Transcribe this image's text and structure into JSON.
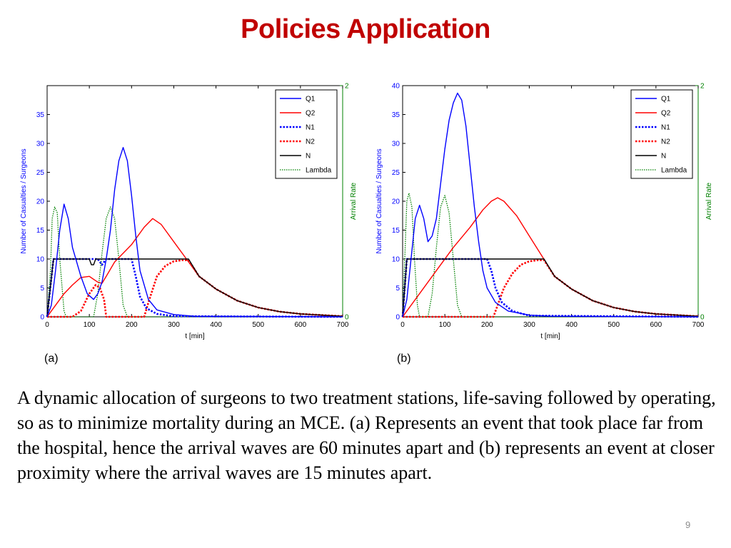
{
  "title": "Policies Application",
  "caption": "A dynamic allocation of surgeons to two treatment stations, life-saving followed by operating, so as to minimize mortality during an MCE. (a) Represents an event that took place far from the hospital, hence the arrival waves are 60 minutes apart and (b) represents an event at closer proximity where the arrival waves are 15 minutes apart.",
  "page_number": "9",
  "chart_data": [
    {
      "id": "a",
      "type": "line",
      "panel_label": "(a)",
      "xlabel": "t [min]",
      "ylabel": "Number of Casualties / Surgeons",
      "y2label": "Arrival Rate",
      "xlim": [
        0,
        700
      ],
      "ylim": [
        0,
        40
      ],
      "y2lim": [
        0,
        2
      ],
      "xticks": [
        "0",
        "100",
        "200",
        "300",
        "400",
        "500",
        "600",
        "700"
      ],
      "yticks": [
        "0",
        "5",
        "10",
        "15",
        "20",
        "25",
        "30",
        "35"
      ],
      "y2ticks": [
        "0",
        "2"
      ],
      "legend_position": "top-right",
      "colors": {
        "Q1": "#0000ff",
        "Q2": "#ff0000",
        "N1": "#0000ff",
        "N2": "#ff0000",
        "N": "#000000",
        "Lambda": "#008000"
      },
      "series": [
        {
          "name": "Q1",
          "style": "solid",
          "axis": "left",
          "points": [
            [
              0,
              0
            ],
            [
              10,
              2
            ],
            [
              20,
              8
            ],
            [
              30,
              15
            ],
            [
              40,
              19.5
            ],
            [
              50,
              17
            ],
            [
              60,
              12
            ],
            [
              80,
              7
            ],
            [
              95,
              4
            ],
            [
              110,
              3
            ],
            [
              120,
              4
            ],
            [
              130,
              6
            ],
            [
              140,
              10
            ],
            [
              150,
              15
            ],
            [
              160,
              22
            ],
            [
              170,
              27
            ],
            [
              180,
              29.3
            ],
            [
              190,
              27
            ],
            [
              200,
              21
            ],
            [
              210,
              14
            ],
            [
              220,
              8
            ],
            [
              240,
              3
            ],
            [
              260,
              1.2
            ],
            [
              300,
              0.4
            ],
            [
              350,
              0.1
            ],
            [
              700,
              0
            ]
          ]
        },
        {
          "name": "Q2",
          "style": "solid",
          "axis": "left",
          "points": [
            [
              0,
              0
            ],
            [
              20,
              2
            ],
            [
              40,
              4
            ],
            [
              60,
              5.5
            ],
            [
              80,
              6.8
            ],
            [
              100,
              7
            ],
            [
              120,
              6
            ],
            [
              130,
              5.8
            ],
            [
              140,
              7
            ],
            [
              160,
              9.5
            ],
            [
              200,
              12.5
            ],
            [
              230,
              15.5
            ],
            [
              250,
              17
            ],
            [
              270,
              16
            ],
            [
              300,
              13
            ],
            [
              330,
              10
            ],
            [
              360,
              7
            ],
            [
              400,
              4.8
            ],
            [
              450,
              2.8
            ],
            [
              500,
              1.6
            ],
            [
              550,
              0.9
            ],
            [
              600,
              0.5
            ],
            [
              650,
              0.3
            ],
            [
              700,
              0.1
            ]
          ]
        },
        {
          "name": "N1",
          "style": "dotted",
          "axis": "left",
          "points": [
            [
              0,
              0
            ],
            [
              15,
              10
            ],
            [
              120,
              10
            ],
            [
              130,
              9
            ],
            [
              140,
              10
            ],
            [
              200,
              10
            ],
            [
              210,
              7
            ],
            [
              220,
              3.5
            ],
            [
              235,
              1.5
            ],
            [
              260,
              0.5
            ],
            [
              300,
              0.1
            ],
            [
              700,
              0
            ]
          ]
        },
        {
          "name": "N2",
          "style": "dotted",
          "axis": "left",
          "points": [
            [
              0,
              0
            ],
            [
              60,
              0
            ],
            [
              80,
              1
            ],
            [
              100,
              4
            ],
            [
              115,
              5.5
            ],
            [
              125,
              5
            ],
            [
              135,
              3
            ],
            [
              140,
              0
            ],
            [
              230,
              0
            ],
            [
              240,
              2.5
            ],
            [
              260,
              7
            ],
            [
              280,
              8.8
            ],
            [
              300,
              9.6
            ],
            [
              320,
              9.8
            ],
            [
              335,
              9.8
            ],
            [
              360,
              7
            ],
            [
              400,
              4.8
            ],
            [
              450,
              2.8
            ],
            [
              500,
              1.6
            ],
            [
              550,
              0.9
            ],
            [
              600,
              0.5
            ],
            [
              650,
              0.3
            ],
            [
              700,
              0.1
            ]
          ]
        },
        {
          "name": "N",
          "style": "solid",
          "axis": "left",
          "points": [
            [
              0,
              0
            ],
            [
              15,
              10
            ],
            [
              100,
              10
            ],
            [
              105,
              9
            ],
            [
              110,
              9
            ],
            [
              115,
              10
            ],
            [
              335,
              10
            ],
            [
              360,
              7
            ],
            [
              400,
              4.8
            ],
            [
              450,
              2.8
            ],
            [
              500,
              1.6
            ],
            [
              550,
              0.9
            ],
            [
              600,
              0.5
            ],
            [
              650,
              0.3
            ],
            [
              700,
              0.1
            ]
          ]
        },
        {
          "name": "Lambda",
          "style": "dotted",
          "axis": "right",
          "points": [
            [
              0,
              0
            ],
            [
              8,
              0.4
            ],
            [
              12,
              0.85
            ],
            [
              18,
              0.95
            ],
            [
              24,
              0.9
            ],
            [
              30,
              0.5
            ],
            [
              40,
              0.05
            ],
            [
              45,
              0
            ],
            [
              110,
              0
            ],
            [
              120,
              0.2
            ],
            [
              130,
              0.55
            ],
            [
              140,
              0.85
            ],
            [
              150,
              0.95
            ],
            [
              160,
              0.85
            ],
            [
              170,
              0.5
            ],
            [
              180,
              0.1
            ],
            [
              190,
              0
            ],
            [
              700,
              0
            ]
          ]
        }
      ]
    },
    {
      "id": "b",
      "type": "line",
      "panel_label": "(b)",
      "xlabel": "t [min]",
      "ylabel": "Number of Casualties / Surgeons",
      "y2label": "Arrival Rate",
      "xlim": [
        0,
        700
      ],
      "ylim": [
        0,
        40
      ],
      "y2lim": [
        0,
        2
      ],
      "xticks": [
        "0",
        "100",
        "200",
        "300",
        "400",
        "500",
        "600",
        "700"
      ],
      "yticks": [
        "0",
        "5",
        "10",
        "15",
        "20",
        "25",
        "30",
        "35",
        "40"
      ],
      "y2ticks": [
        "0",
        "2"
      ],
      "legend_position": "top-right",
      "colors": {
        "Q1": "#0000ff",
        "Q2": "#ff0000",
        "N1": "#0000ff",
        "N2": "#ff0000",
        "N": "#000000",
        "Lambda": "#008000"
      },
      "series": [
        {
          "name": "Q1",
          "style": "solid",
          "axis": "left",
          "points": [
            [
              0,
              0
            ],
            [
              10,
              3
            ],
            [
              20,
              10
            ],
            [
              30,
              17
            ],
            [
              40,
              19.3
            ],
            [
              50,
              17
            ],
            [
              60,
              13
            ],
            [
              70,
              14
            ],
            [
              80,
              17
            ],
            [
              90,
              23
            ],
            [
              100,
              29
            ],
            [
              110,
              34
            ],
            [
              120,
              37
            ],
            [
              130,
              38.7
            ],
            [
              140,
              37.5
            ],
            [
              150,
              33
            ],
            [
              160,
              26
            ],
            [
              170,
              19
            ],
            [
              180,
              13
            ],
            [
              190,
              8
            ],
            [
              200,
              5
            ],
            [
              220,
              2.5
            ],
            [
              250,
              1
            ],
            [
              300,
              0.3
            ],
            [
              350,
              0.1
            ],
            [
              700,
              0
            ]
          ]
        },
        {
          "name": "Q2",
          "style": "solid",
          "axis": "left",
          "points": [
            [
              0,
              0
            ],
            [
              40,
              4
            ],
            [
              80,
              8
            ],
            [
              120,
              12
            ],
            [
              160,
              15.5
            ],
            [
              190,
              18.5
            ],
            [
              210,
              20
            ],
            [
              225,
              20.6
            ],
            [
              240,
              20
            ],
            [
              270,
              17.5
            ],
            [
              300,
              14
            ],
            [
              330,
              10.5
            ],
            [
              360,
              7
            ],
            [
              400,
              4.8
            ],
            [
              450,
              2.8
            ],
            [
              500,
              1.6
            ],
            [
              550,
              0.9
            ],
            [
              600,
              0.5
            ],
            [
              650,
              0.3
            ],
            [
              700,
              0.1
            ]
          ]
        },
        {
          "name": "N1",
          "style": "dotted",
          "axis": "left",
          "points": [
            [
              0,
              0
            ],
            [
              10,
              10
            ],
            [
              200,
              10
            ],
            [
              210,
              8
            ],
            [
              220,
              5
            ],
            [
              235,
              2.5
            ],
            [
              260,
              1
            ],
            [
              300,
              0.2
            ],
            [
              700,
              0
            ]
          ]
        },
        {
          "name": "N2",
          "style": "dotted",
          "axis": "left",
          "points": [
            [
              0,
              0
            ],
            [
              215,
              0
            ],
            [
              225,
              2
            ],
            [
              240,
              5
            ],
            [
              260,
              7.5
            ],
            [
              280,
              9
            ],
            [
              300,
              9.6
            ],
            [
              320,
              9.8
            ],
            [
              335,
              9.8
            ],
            [
              360,
              7
            ],
            [
              400,
              4.8
            ],
            [
              450,
              2.8
            ],
            [
              500,
              1.6
            ],
            [
              550,
              0.9
            ],
            [
              600,
              0.5
            ],
            [
              650,
              0.3
            ],
            [
              700,
              0.1
            ]
          ]
        },
        {
          "name": "N",
          "style": "solid",
          "axis": "left",
          "points": [
            [
              0,
              0
            ],
            [
              10,
              10
            ],
            [
              335,
              10
            ],
            [
              360,
              7
            ],
            [
              400,
              4.8
            ],
            [
              450,
              2.8
            ],
            [
              500,
              1.6
            ],
            [
              550,
              0.9
            ],
            [
              600,
              0.5
            ],
            [
              650,
              0.3
            ],
            [
              700,
              0.1
            ]
          ]
        },
        {
          "name": "Lambda",
          "style": "dotted",
          "axis": "right",
          "points": [
            [
              0,
              0
            ],
            [
              5,
              0.5
            ],
            [
              10,
              1.0
            ],
            [
              15,
              1.07
            ],
            [
              22,
              0.95
            ],
            [
              28,
              0.5
            ],
            [
              35,
              0.1
            ],
            [
              40,
              0
            ],
            [
              60,
              0
            ],
            [
              70,
              0.2
            ],
            [
              80,
              0.6
            ],
            [
              90,
              0.95
            ],
            [
              100,
              1.05
            ],
            [
              110,
              0.9
            ],
            [
              120,
              0.5
            ],
            [
              130,
              0.1
            ],
            [
              140,
              0
            ],
            [
              700,
              0
            ]
          ]
        }
      ]
    }
  ]
}
